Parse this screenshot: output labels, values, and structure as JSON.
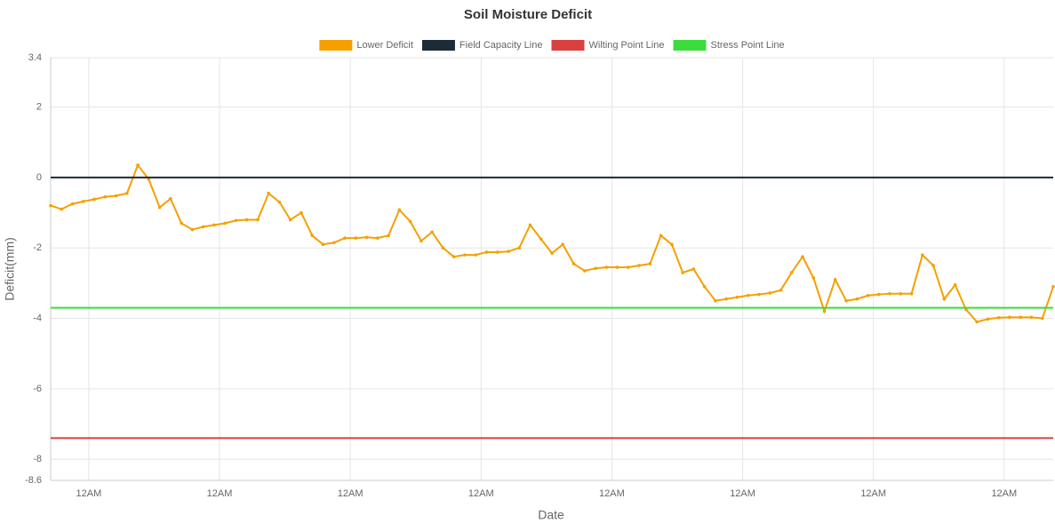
{
  "chart_data": {
    "type": "line",
    "title": "Soil Moisture Deficit",
    "x_label": "Date",
    "y_label": "Deficit(mm)",
    "x": [
      0,
      2,
      4,
      6,
      8,
      10,
      12,
      14,
      16,
      18,
      20,
      22,
      24,
      26,
      28,
      30,
      32,
      34,
      36,
      38,
      40,
      42,
      44,
      46,
      48,
      50,
      52,
      54,
      56,
      58,
      60,
      62,
      64,
      66,
      68,
      70,
      72,
      74,
      76,
      78,
      80,
      82,
      84,
      86,
      88,
      90,
      92,
      94,
      96,
      98,
      100,
      102,
      104,
      106,
      108,
      110,
      112,
      114,
      116,
      118,
      120,
      122,
      124,
      126,
      128,
      130,
      132,
      134,
      136,
      138,
      140,
      142,
      144,
      146,
      148,
      150,
      152,
      154,
      156,
      158,
      160,
      162,
      164,
      166,
      168,
      170,
      172,
      174,
      176,
      178,
      180,
      182,
      184
    ],
    "series": [
      {
        "name": "Lower Deficit",
        "color": "#f5a000",
        "markers": true,
        "values": [
          -0.8,
          -0.9,
          -0.75,
          -0.68,
          -0.62,
          -0.55,
          -0.52,
          -0.45,
          0.35,
          -0.05,
          -0.85,
          -0.6,
          -1.3,
          -1.48,
          -1.4,
          -1.35,
          -1.3,
          -1.22,
          -1.2,
          -1.2,
          -0.45,
          -0.7,
          -1.2,
          -1.0,
          -1.65,
          -1.9,
          -1.85,
          -1.72,
          -1.72,
          -1.7,
          -1.72,
          -1.65,
          -0.92,
          -1.25,
          -1.8,
          -1.55,
          -2.0,
          -2.25,
          -2.2,
          -2.2,
          -2.12,
          -2.12,
          -2.1,
          -2.0,
          -1.35,
          -1.75,
          -2.15,
          -1.9,
          -2.45,
          -2.65,
          -2.58,
          -2.55,
          -2.55,
          -2.55,
          -2.5,
          -2.45,
          -1.65,
          -1.9,
          -2.7,
          -2.6,
          -3.1,
          -3.5,
          -3.45,
          -3.4,
          -3.35,
          -3.32,
          -3.28,
          -3.2,
          -2.7,
          -2.25,
          -2.85,
          -3.8,
          -2.9,
          -3.5,
          -3.45,
          -3.35,
          -3.32,
          -3.3,
          -3.3,
          -3.3,
          -2.2,
          -2.5,
          -3.45,
          -3.05,
          -3.75,
          -4.1,
          -4.02,
          -3.98,
          -3.97,
          -3.97,
          -3.97,
          -4.0,
          -3.1
        ]
      },
      {
        "name": "Field Capacity Line",
        "color": "#1c2b36",
        "x": [
          0,
          184
        ],
        "values": [
          0,
          0
        ]
      },
      {
        "name": "Wilting Point Line",
        "color": "#d94040",
        "x": [
          0,
          184
        ],
        "values": [
          -7.4,
          -7.4
        ]
      },
      {
        "name": "Stress Point Line",
        "color": "#3ddc3d",
        "x": [
          0,
          184
        ],
        "values": [
          -3.7,
          -3.7
        ]
      }
    ],
    "xlim": [
      0,
      184
    ],
    "xticks": [
      {
        "value": 7,
        "label": "12AM"
      },
      {
        "value": 31,
        "label": "12AM"
      },
      {
        "value": 55,
        "label": "12AM"
      },
      {
        "value": 79,
        "label": "12AM"
      },
      {
        "value": 103,
        "label": "12AM"
      },
      {
        "value": 127,
        "label": "12AM"
      },
      {
        "value": 151,
        "label": "12AM"
      },
      {
        "value": 175,
        "label": "12AM"
      }
    ],
    "ylim": [
      -8.6,
      3.4
    ],
    "yticks": [
      3.4,
      2,
      0,
      -2,
      -4,
      -6,
      -8,
      -8.6
    ],
    "grid": true,
    "legend": "top"
  }
}
